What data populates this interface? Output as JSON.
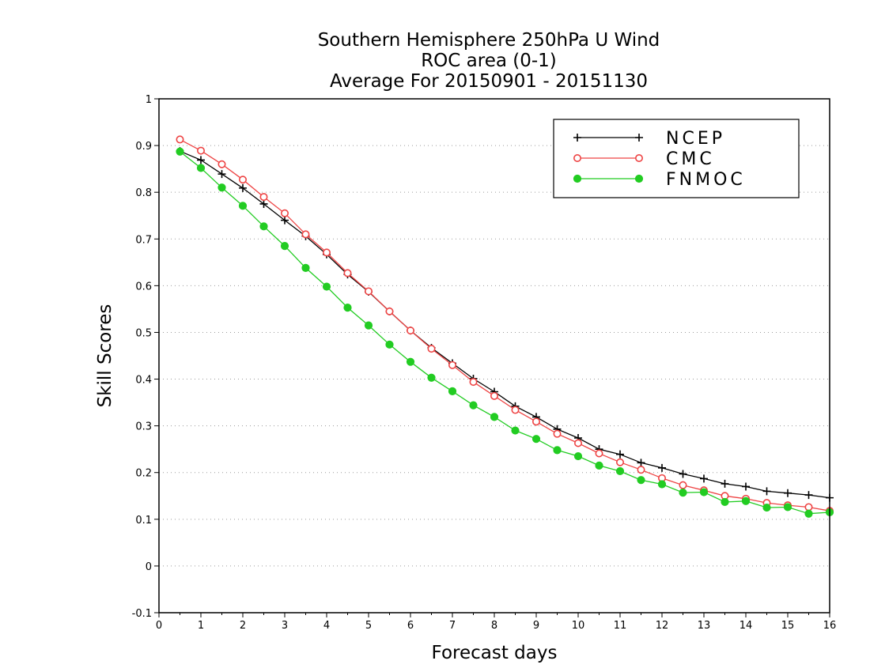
{
  "chart_data": {
    "type": "line",
    "title_lines": [
      "Southern Hemisphere 250hPa U Wind",
      "ROC area (0-1)",
      "Average For 20150901 - 20151130"
    ],
    "xlabel": "Forecast days",
    "ylabel": "Skill Scores",
    "xlim": [
      0,
      16
    ],
    "ylim": [
      -0.1,
      1
    ],
    "x_ticks": [
      0,
      1,
      2,
      3,
      4,
      5,
      6,
      7,
      8,
      9,
      10,
      11,
      12,
      13,
      14,
      15,
      16
    ],
    "y_ticks": [
      -0.1,
      0,
      0.1,
      0.2,
      0.3,
      0.4,
      0.5,
      0.6,
      0.7,
      0.8,
      0.9,
      1
    ],
    "y_tick_labels": [
      "-0.1",
      "0",
      "0.1",
      "0.2",
      "0.3",
      "0.4",
      "0.5",
      "0.6",
      "0.7",
      "0.8",
      "0.9",
      "1"
    ],
    "grid": true,
    "legend_position": "top-right",
    "x": [
      0.5,
      1,
      1.5,
      2,
      2.5,
      3,
      3.5,
      4,
      4.5,
      5,
      5.5,
      6,
      6.5,
      7,
      7.5,
      8,
      8.5,
      9,
      9.5,
      10,
      10.5,
      11,
      11.5,
      12,
      12.5,
      13,
      13.5,
      14,
      14.5,
      15,
      15.5,
      16
    ],
    "series": [
      {
        "name": "NCEP",
        "color": "#000000",
        "marker": "plus",
        "values": [
          0.888,
          0.869,
          0.839,
          0.809,
          0.775,
          0.74,
          0.706,
          0.667,
          0.624,
          0.587,
          0.545,
          0.504,
          0.467,
          0.434,
          0.401,
          0.373,
          0.342,
          0.319,
          0.293,
          0.274,
          0.25,
          0.239,
          0.221,
          0.21,
          0.197,
          0.187,
          0.176,
          0.17,
          0.16,
          0.156,
          0.152,
          0.146
        ]
      },
      {
        "name": "CMC",
        "color": "#ee4444",
        "marker": "open-circle",
        "values": [
          0.913,
          0.889,
          0.86,
          0.827,
          0.79,
          0.755,
          0.71,
          0.671,
          0.627,
          0.588,
          0.545,
          0.504,
          0.465,
          0.43,
          0.394,
          0.364,
          0.334,
          0.309,
          0.283,
          0.263,
          0.241,
          0.222,
          0.206,
          0.188,
          0.173,
          0.162,
          0.15,
          0.144,
          0.135,
          0.13,
          0.126,
          0.118
        ]
      },
      {
        "name": "FNMOC",
        "color": "#22cc22",
        "marker": "filled-circle",
        "values": [
          0.887,
          0.852,
          0.81,
          0.771,
          0.727,
          0.685,
          0.638,
          0.598,
          0.553,
          0.515,
          0.474,
          0.437,
          0.403,
          0.374,
          0.344,
          0.319,
          0.29,
          0.272,
          0.248,
          0.235,
          0.215,
          0.203,
          0.184,
          0.175,
          0.157,
          0.158,
          0.137,
          0.139,
          0.125,
          0.126,
          0.112,
          0.115
        ]
      }
    ]
  }
}
